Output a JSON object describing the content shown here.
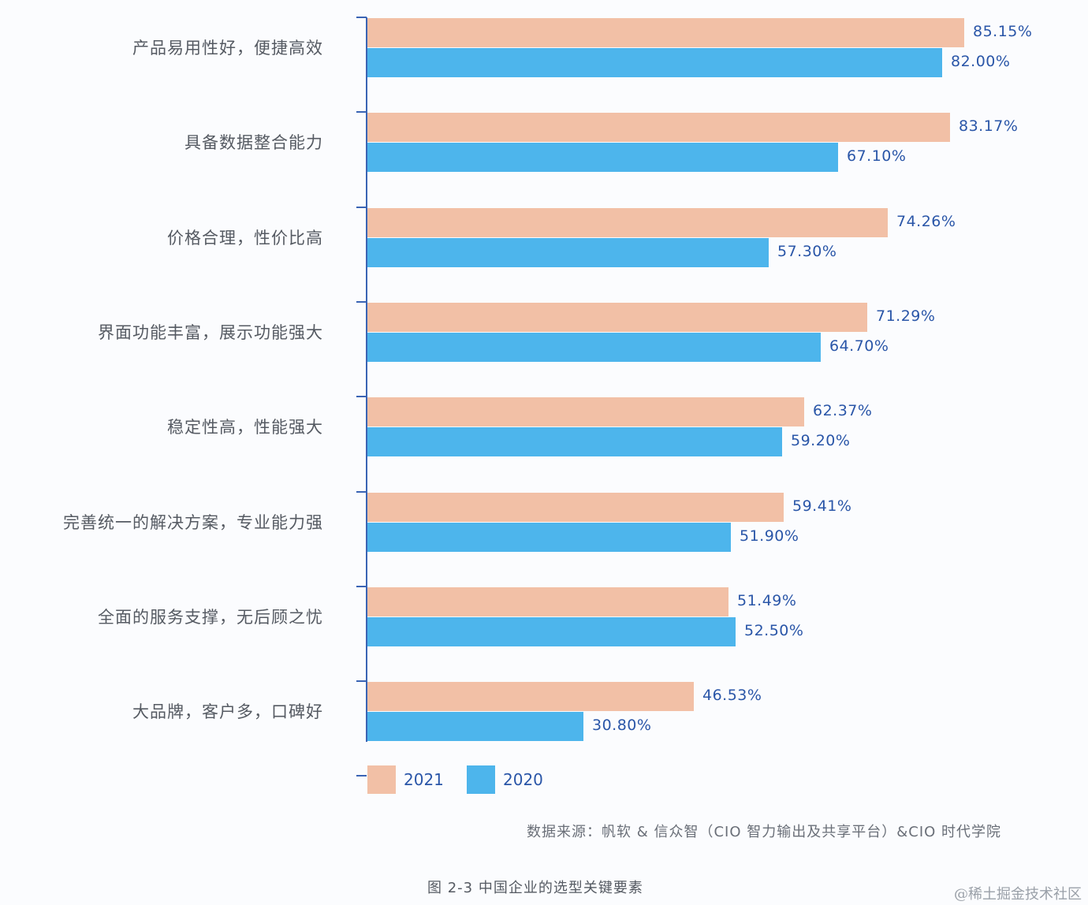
{
  "chart_data": {
    "type": "bar",
    "orientation": "horizontal",
    "title": "图 2-3 中国企业的选型关键要素",
    "xlabel": "",
    "ylabel": "",
    "xlim": [
      0,
      100
    ],
    "grid": false,
    "legend_position": "bottom-left",
    "categories": [
      "产品易用性好，便捷高效",
      "具备数据整合能力",
      "价格合理，性价比高",
      "界面功能丰富，展示功能强大",
      "稳定性高，性能强大",
      "完善统一的解决方案，专业能力强",
      "全面的服务支撑，无后顾之忧",
      "大品牌，客户多，口碑好"
    ],
    "series": [
      {
        "name": "2021",
        "color": "#f2c0a6",
        "values": [
          85.15,
          83.17,
          74.26,
          71.29,
          62.37,
          59.41,
          51.49,
          46.53
        ],
        "labels": [
          "85.15%",
          "83.17%",
          "74.26%",
          "71.29%",
          "62.37%",
          "59.41%",
          "51.49%",
          "46.53%"
        ]
      },
      {
        "name": "2020",
        "color": "#4db5ec",
        "values": [
          82.0,
          67.1,
          57.3,
          64.7,
          59.2,
          51.9,
          52.5,
          30.8
        ],
        "labels": [
          "82.00%",
          "67.10%",
          "57.30%",
          "64.70%",
          "59.20%",
          "51.90%",
          "52.50%",
          "30.80%"
        ]
      }
    ],
    "source": "数据来源：帆软 & 信众智（CIO 智力输出及共享平台）&CIO 时代学院",
    "watermark": "@稀土掘金技术社区"
  },
  "colors": {
    "axis": "#3a64b4",
    "value_text": "#2a56a8",
    "label_text": "#555a62"
  }
}
